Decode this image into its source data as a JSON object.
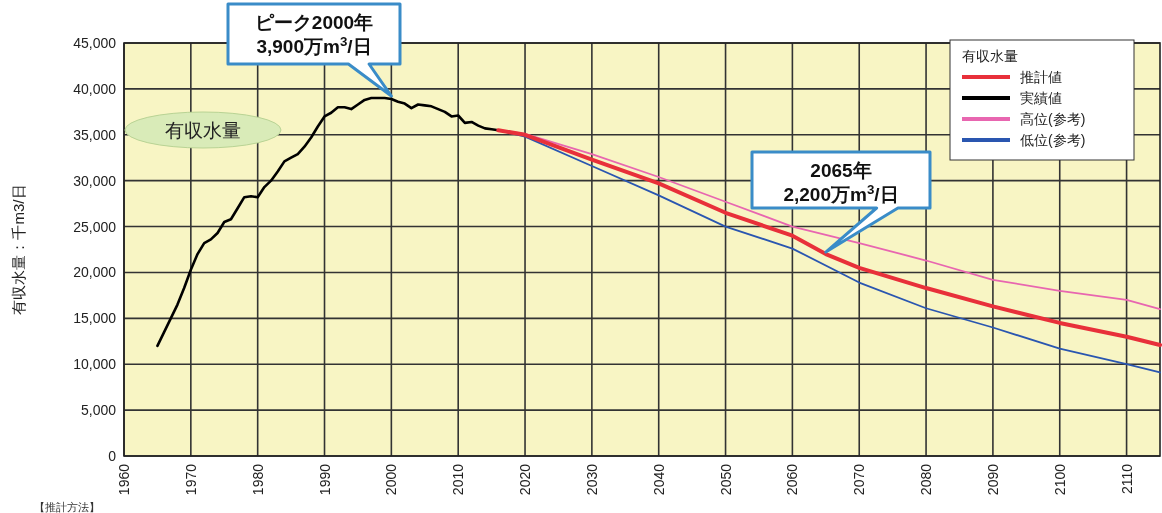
{
  "chart_data": {
    "type": "line",
    "ylabel": "有収水量：千m3/日",
    "legend_title": "有収水量",
    "legend": "top right",
    "grid": true,
    "marker": "none",
    "line_style": "solid",
    "xlim": [
      1960,
      2115
    ],
    "xticks": [
      1960,
      1970,
      1980,
      1990,
      2000,
      2010,
      2020,
      2030,
      2040,
      2050,
      2060,
      2070,
      2080,
      2090,
      2100,
      2110
    ],
    "ylim": [
      0,
      45000
    ],
    "yticks": [
      {
        "value": 0,
        "label": "0"
      },
      {
        "value": 5000,
        "label": "5,000"
      },
      {
        "value": 10000,
        "label": "10,000"
      },
      {
        "value": 15000,
        "label": "15,000"
      },
      {
        "value": 20000,
        "label": "20,000"
      },
      {
        "value": 25000,
        "label": "25,000"
      },
      {
        "value": 30000,
        "label": "30,000"
      },
      {
        "value": 35000,
        "label": "35,000"
      },
      {
        "value": 40000,
        "label": "40,000"
      },
      {
        "value": 45000,
        "label": "45,000"
      }
    ],
    "series": [
      {
        "name": "推計値",
        "color": "#e8303a",
        "x": [
          2016,
          2020,
          2030,
          2040,
          2050,
          2060,
          2065,
          2070,
          2080,
          2090,
          2100,
          2110,
          2115
        ],
        "values": [
          35500,
          35000,
          32300,
          29700,
          26500,
          24000,
          22000,
          20500,
          18300,
          16300,
          14500,
          13000,
          12100
        ]
      },
      {
        "name": "実績値",
        "color": "#000000",
        "x": [
          1965,
          1966,
          1967,
          1968,
          1969,
          1970,
          1971,
          1972,
          1973,
          1974,
          1975,
          1976,
          1977,
          1978,
          1979,
          1980,
          1981,
          1982,
          1983,
          1984,
          1985,
          1986,
          1987,
          1988,
          1989,
          1990,
          1991,
          1992,
          1993,
          1994,
          1995,
          1996,
          1997,
          1998,
          1999,
          2000,
          2001,
          2002,
          2003,
          2004,
          2005,
          2006,
          2007,
          2008,
          2009,
          2010,
          2011,
          2012,
          2013,
          2014,
          2015,
          2016
        ],
        "values": [
          12000,
          13500,
          15000,
          16500,
          18300,
          20300,
          22000,
          23200,
          23600,
          24300,
          25500,
          25800,
          27000,
          28200,
          28300,
          28200,
          29300,
          30000,
          31000,
          32100,
          32500,
          32900,
          33700,
          34700,
          35900,
          37000,
          37400,
          38000,
          38000,
          37800,
          38300,
          38800,
          39000,
          39000,
          39000,
          38900,
          38600,
          38400,
          37900,
          38300,
          38200,
          38100,
          37800,
          37500,
          37000,
          37100,
          36300,
          36400,
          36000,
          35700,
          35600,
          35500
        ]
      },
      {
        "name": "高位(参考)",
        "color": "#e866b0",
        "x": [
          2016,
          2020,
          2030,
          2040,
          2050,
          2060,
          2070,
          2080,
          2090,
          2100,
          2110,
          2115
        ],
        "values": [
          35500,
          35100,
          32900,
          30400,
          27700,
          25000,
          23200,
          21300,
          19200,
          18000,
          17000,
          16000
        ]
      },
      {
        "name": "低位(参考)",
        "color": "#2a56b0",
        "x": [
          2016,
          2020,
          2030,
          2040,
          2050,
          2060,
          2070,
          2080,
          2090,
          2100,
          2110,
          2115
        ],
        "values": [
          35500,
          34800,
          31600,
          28400,
          25000,
          22600,
          18900,
          16100,
          14000,
          11700,
          10000,
          9100
        ]
      }
    ],
    "annotations": [
      {
        "text": "ピーク2000年 3,900万m$^{3}$/日",
        "x": 2000,
        "y": 39000
      },
      {
        "text": "2065年 2,200万m$^{3}$/日",
        "x": 2065,
        "y": 22000
      },
      "有収水量",
      "【推計方法】"
    ]
  }
}
